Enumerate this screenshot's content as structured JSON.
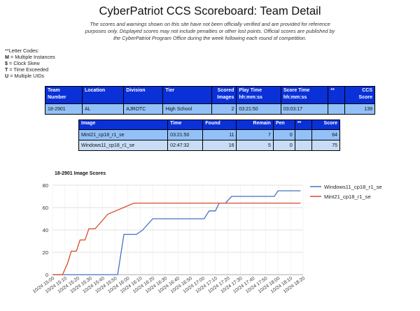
{
  "page": {
    "title": "CyberPatriot CCS Scoreboard: Team Detail",
    "disclaimer": "The scores and warnings shown on this site have not been officially verified and are provided for reference purposes only. Displayed scores may not include penalties or other lost points. Official scores are published by the CyberPatriot Program Office during the week following each round of competition."
  },
  "legend": {
    "heading": "**Letter Codes:",
    "items": [
      {
        "code": "M",
        "text": " = Multiple Instances"
      },
      {
        "code": "$",
        "text": " = Clock Skew"
      },
      {
        "code": "T",
        "text": " = Time Exceeded"
      },
      {
        "code": "U",
        "text": " = Multiple UIDs"
      }
    ]
  },
  "team_table": {
    "headers": {
      "team_number_1": "Team",
      "team_number_2": "Number",
      "location": "Location",
      "division": "Division",
      "tier": "Tier",
      "scored_1": "Scored",
      "scored_2": "Images",
      "play_1": "Play Time",
      "play_2": "hh:mm:ss",
      "score_time_1": "Score Time",
      "score_time_2": "hh:mm:ss",
      "flags": "**",
      "ccs_1": "CCS",
      "ccs_2": "Score"
    },
    "row": {
      "team_number": "18-2901",
      "location": "AL",
      "division": "AJROTC",
      "tier": "High School",
      "scored_images": "2",
      "play_time": "03:21:50",
      "score_time": "03:03:17",
      "flags": "",
      "ccs_score": "139"
    }
  },
  "image_table": {
    "headers": {
      "image": "Image",
      "time": "Time",
      "found": "Found",
      "remain": "Remain",
      "pen": "Pen",
      "flags": "**",
      "score": "Score"
    },
    "rows": [
      {
        "image": "Mint21_cp18_r1_se",
        "time": "03:21:50",
        "found": "11",
        "remain": "7",
        "pen": "0",
        "flags": "",
        "score": "64"
      },
      {
        "image": "Windows11_cp18_r1_se",
        "time": "02:47:32",
        "found": "16",
        "remain": "5",
        "pen": "0",
        "flags": "",
        "score": "75"
      }
    ]
  },
  "chart_data": {
    "type": "line",
    "title": "18-2901 Image Scores",
    "xlabel": "",
    "ylabel": "",
    "ylim": [
      0,
      80
    ],
    "yticks": [
      0,
      20,
      40,
      60,
      80
    ],
    "xticks": [
      "10/24 15:00",
      "10/24 15:10",
      "10/24 15:20",
      "10/24 15:30",
      "10/24 15:40",
      "10/24 15:50",
      "10/24 16:00",
      "10/24 16:10",
      "10/24 16:20",
      "10/24 16:30",
      "10/24 16:40",
      "10/24 16:50",
      "10/24 17:00",
      "10/24 17:10",
      "10/24 17:20",
      "10/24 17:30",
      "10/24 17:40",
      "10/24 17:50",
      "10/24 18:00",
      "10/24 18:10",
      "10/24 18:20"
    ],
    "grid": true,
    "legend_position": "right",
    "series": [
      {
        "name": "Windows11_cp18_r1_se",
        "color": "#4472c4",
        "points": [
          [
            "15:00",
            0
          ],
          [
            "15:52",
            0
          ],
          [
            "15:57",
            36
          ],
          [
            "16:07",
            36
          ],
          [
            "16:12",
            40
          ],
          [
            "16:20",
            50
          ],
          [
            "16:34",
            50
          ],
          [
            "17:01",
            50
          ],
          [
            "17:05",
            57
          ],
          [
            "17:10",
            57
          ],
          [
            "17:13",
            64
          ],
          [
            "17:18",
            64
          ],
          [
            "17:23",
            70
          ],
          [
            "17:30",
            70
          ],
          [
            "17:37",
            70
          ],
          [
            "17:57",
            70
          ],
          [
            "18:00",
            75
          ],
          [
            "18:07",
            75
          ],
          [
            "18:18",
            75
          ]
        ]
      },
      {
        "name": "Mint21_cp18_r1_se",
        "color": "#d84b2a",
        "points": [
          [
            "15:00",
            0
          ],
          [
            "15:08",
            0
          ],
          [
            "15:12",
            10
          ],
          [
            "15:15",
            21
          ],
          [
            "15:19",
            21
          ],
          [
            "15:22",
            31
          ],
          [
            "15:26",
            31
          ],
          [
            "15:29",
            41
          ],
          [
            "15:34",
            41
          ],
          [
            "15:41",
            50
          ],
          [
            "15:44",
            54
          ],
          [
            "16:05",
            64
          ],
          [
            "16:45",
            64
          ],
          [
            "17:20",
            64
          ],
          [
            "18:18",
            64
          ]
        ]
      }
    ]
  }
}
